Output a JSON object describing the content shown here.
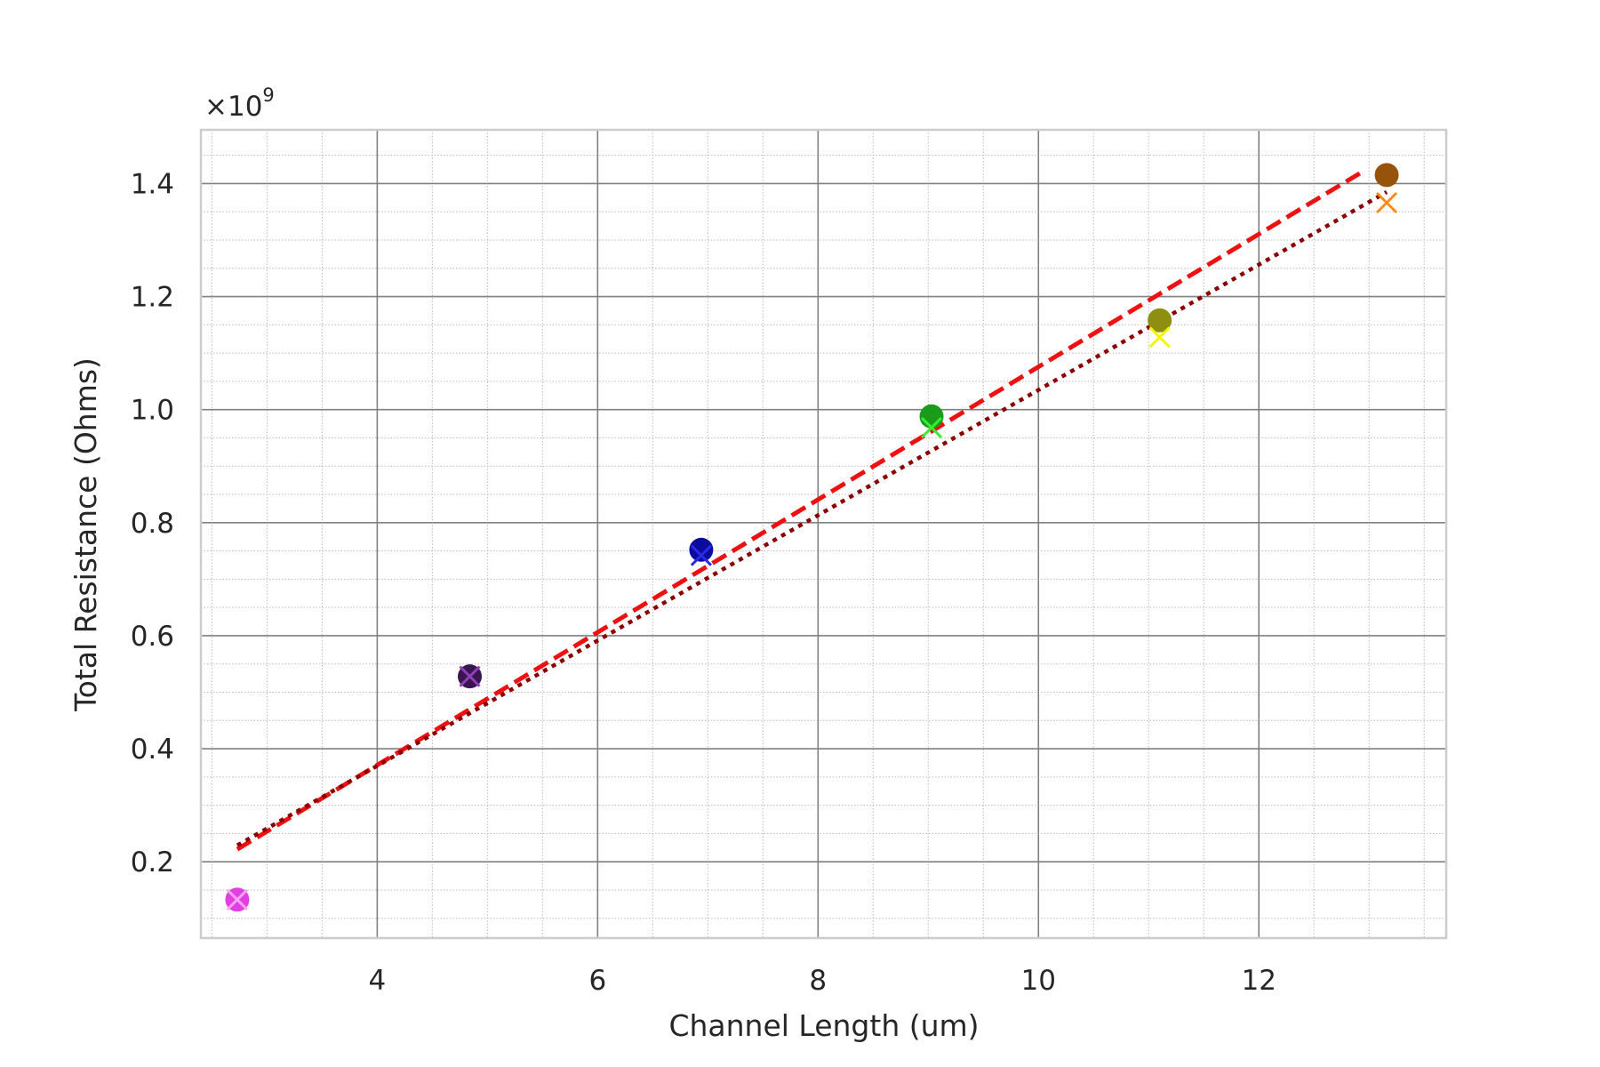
{
  "chart_data": {
    "type": "scatter",
    "title": "",
    "xlabel": "Channel Length (um)",
    "ylabel": "Total Resistance (Ohms)",
    "y_offset_label": {
      "base": "×10",
      "exponent": "9"
    },
    "xlim": [
      2.4,
      13.7
    ],
    "ylim": [
      0.065,
      1.495
    ],
    "x_ticks": [
      4,
      6,
      8,
      10,
      12
    ],
    "x_tick_labels": [
      "4",
      "6",
      "8",
      "10",
      "12"
    ],
    "y_ticks": [
      0.2,
      0.4,
      0.6,
      0.8,
      1.0,
      1.2,
      1.4
    ],
    "y_tick_labels": [
      "0.2",
      "0.4",
      "0.6",
      "0.8",
      "1.0",
      "1.2",
      "1.4"
    ],
    "x_minor_step": 0.5,
    "y_minor_step": 0.05,
    "grid": true,
    "legend": "none",
    "points": [
      {
        "x": 2.73,
        "y_circle": 0.133,
        "y_cross": 0.133,
        "circle_color": "#e040e0",
        "cross_color": "#f9a0f9"
      },
      {
        "x": 4.84,
        "y_circle": 0.528,
        "y_cross": 0.528,
        "circle_color": "#3b1552",
        "cross_color": "#8e3fb4"
      },
      {
        "x": 6.94,
        "y_circle": 0.752,
        "y_cross": 0.742,
        "circle_color": "#0c0c9c",
        "cross_color": "#2a2ae8"
      },
      {
        "x": 9.03,
        "y_circle": 0.988,
        "y_cross": 0.968,
        "circle_color": "#1a9c1a",
        "cross_color": "#33ee33"
      },
      {
        "x": 11.1,
        "y_circle": 1.158,
        "y_cross": 1.128,
        "circle_color": "#8e8e10",
        "cross_color": "#f4f40a"
      },
      {
        "x": 13.16,
        "y_circle": 1.415,
        "y_cross": 1.366,
        "circle_color": "#97520b",
        "cross_color": "#ff8c19"
      }
    ],
    "series": [
      {
        "style": "dashed",
        "color": "#ee1111",
        "x": [
          2.73,
          12.95
        ],
        "y": [
          0.222,
          1.422
        ]
      },
      {
        "style": "dotted",
        "color": "#8b0000",
        "x": [
          2.73,
          13.16
        ],
        "y": [
          0.229,
          1.385
        ]
      }
    ],
    "colors": {
      "axes_edge": "#cccccc",
      "major_grid": "#808080",
      "minor_grid": "#bbbbbb",
      "text": "#262626"
    }
  }
}
